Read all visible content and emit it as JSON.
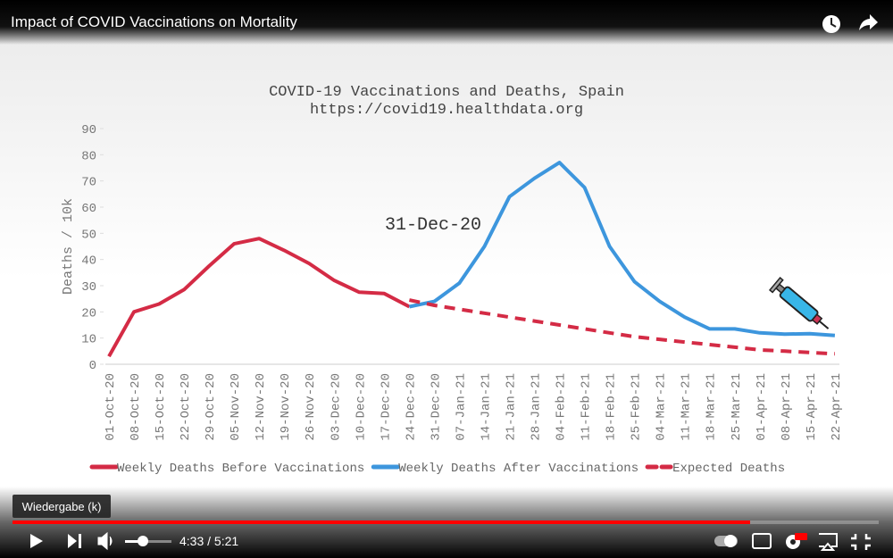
{
  "video_title": "Impact of COVID Vaccinations on Mortality",
  "tooltip": "Wiedergabe (k)",
  "time": "4:33 / 5:21",
  "chart_data": {
    "type": "line",
    "title": "COVID-19 Vaccinations and Deaths, Spain",
    "subtitle": "https://covid19.healthdata.org",
    "y_label": "Deaths / 10k",
    "annotation": "31-Dec-20",
    "categories": [
      "01-Oct-20",
      "08-Oct-20",
      "15-Oct-20",
      "22-Oct-20",
      "29-Oct-20",
      "05-Nov-20",
      "12-Nov-20",
      "19-Nov-20",
      "26-Nov-20",
      "03-Dec-20",
      "10-Dec-20",
      "17-Dec-20",
      "24-Dec-20",
      "31-Dec-20",
      "07-Jan-21",
      "14-Jan-21",
      "21-Jan-21",
      "28-Jan-21",
      "04-Feb-21",
      "11-Feb-21",
      "18-Feb-21",
      "25-Feb-21",
      "04-Mar-21",
      "11-Mar-21",
      "18-Mar-21",
      "25-Mar-21",
      "01-Apr-21",
      "08-Apr-21",
      "15-Apr-21",
      "22-Apr-21"
    ],
    "series": [
      {
        "name": "Weekly Deaths Before Vaccinations",
        "color": "#d42b45",
        "dashed": false,
        "values": [
          3,
          20,
          23,
          28.5,
          37.5,
          46,
          48,
          43.5,
          38.5,
          32,
          27.5,
          27,
          22,
          null,
          null,
          null,
          null,
          null,
          null,
          null,
          null,
          null,
          null,
          null,
          null,
          null,
          null,
          null,
          null,
          null
        ]
      },
      {
        "name": "Weekly Deaths After Vaccinations",
        "color": "#3d96dd",
        "dashed": false,
        "values": [
          null,
          null,
          null,
          null,
          null,
          null,
          null,
          null,
          null,
          null,
          null,
          null,
          22,
          24,
          31,
          45,
          64,
          71,
          77,
          67.5,
          45,
          31.5,
          24,
          18,
          13.5,
          13.5,
          12,
          11.5,
          11.7,
          11
        ]
      },
      {
        "name": "Expected Deaths",
        "color": "#d42b45",
        "dashed": true,
        "values": [
          null,
          null,
          null,
          null,
          null,
          null,
          null,
          null,
          null,
          null,
          null,
          null,
          24.5,
          22.5,
          21,
          19.5,
          18,
          16.5,
          15,
          13.5,
          12,
          10.5,
          9.5,
          8.5,
          7.5,
          6.5,
          5.5,
          5,
          4.5,
          4
        ]
      }
    ],
    "ylim": [
      0,
      90
    ],
    "yticks": [
      0,
      10,
      20,
      30,
      40,
      50,
      60,
      70,
      80,
      90
    ],
    "grid": false
  }
}
